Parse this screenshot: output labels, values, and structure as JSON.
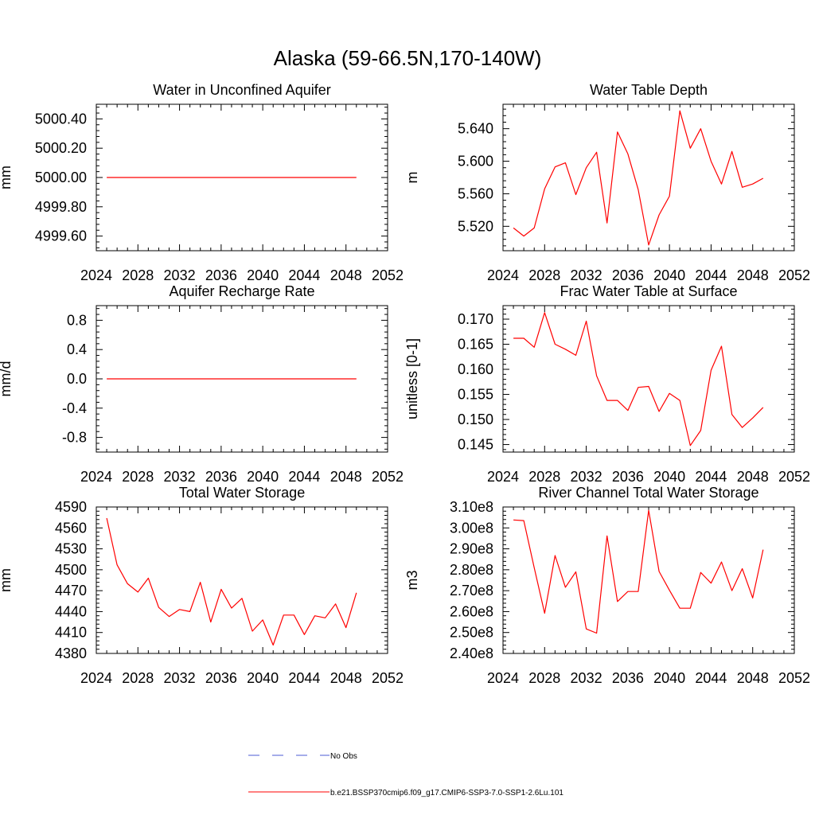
{
  "figure_title": "Alaska (59-66.5N,170-140W)",
  "legend": {
    "obs_label": "No Obs",
    "model_label": "b.e21.BSSP370cmip6.f09_g17.CMIP6-SSP3-7.0-SSP1-2.6Lu.101",
    "colors": {
      "obs": "#4b5bd6",
      "model": "#ff0000"
    }
  },
  "chart_data": [
    {
      "type": "line",
      "title": "Water in Unconfined Aquifer",
      "ylabel": "mm",
      "xlim": [
        2024,
        2052
      ],
      "xticks": [
        2024,
        2028,
        2032,
        2036,
        2040,
        2044,
        2048,
        2052
      ],
      "xtick_labels": [
        "2024",
        "2028",
        "2032",
        "2036",
        "2040",
        "2044",
        "2048",
        "2052"
      ],
      "ylim": [
        4999.5,
        5000.5
      ],
      "yticks": [
        4999.6,
        4999.8,
        5000.0,
        5000.2,
        5000.4
      ],
      "ytick_labels": [
        "4999.60",
        "4999.80",
        "5000.00",
        "5000.20",
        "5000.40"
      ],
      "series": [
        {
          "name": "b.e21.BSSP370cmip6.f09_g17.CMIP6-SSP3-7.0-SSP1-2.6Lu.101",
          "color": "#ff0000",
          "x": [
            2025,
            2026,
            2027,
            2028,
            2029,
            2030,
            2031,
            2032,
            2033,
            2034,
            2035,
            2036,
            2037,
            2038,
            2039,
            2040,
            2041,
            2042,
            2043,
            2044,
            2045,
            2046,
            2047,
            2048,
            2049
          ],
          "y": [
            5000,
            5000,
            5000,
            5000,
            5000,
            5000,
            5000,
            5000,
            5000,
            5000,
            5000,
            5000,
            5000,
            5000,
            5000,
            5000,
            5000,
            5000,
            5000,
            5000,
            5000,
            5000,
            5000,
            5000,
            5000
          ]
        }
      ]
    },
    {
      "type": "line",
      "title": "Water Table Depth",
      "ylabel": "m",
      "xlim": [
        2024,
        2052
      ],
      "xticks": [
        2024,
        2028,
        2032,
        2036,
        2040,
        2044,
        2048,
        2052
      ],
      "xtick_labels": [
        "2024",
        "2028",
        "2032",
        "2036",
        "2040",
        "2044",
        "2048",
        "2052"
      ],
      "ylim": [
        5.49,
        5.67
      ],
      "yticks": [
        5.52,
        5.56,
        5.6,
        5.64
      ],
      "ytick_labels": [
        "5.520",
        "5.560",
        "5.600",
        "5.640"
      ],
      "series": [
        {
          "name": "b.e21.BSSP370cmip6.f09_g17.CMIP6-SSP3-7.0-SSP1-2.6Lu.101",
          "color": "#ff0000",
          "x": [
            2025,
            2026,
            2027,
            2028,
            2029,
            2030,
            2031,
            2032,
            2033,
            2034,
            2035,
            2036,
            2037,
            2038,
            2039,
            2040,
            2041,
            2042,
            2043,
            2044,
            2045,
            2046,
            2047,
            2048,
            2049
          ],
          "y": [
            5.518,
            5.508,
            5.518,
            5.566,
            5.593,
            5.598,
            5.559,
            5.592,
            5.611,
            5.524,
            5.636,
            5.609,
            5.565,
            5.497,
            5.534,
            5.557,
            5.662,
            5.616,
            5.64,
            5.6,
            5.572,
            5.612,
            5.568,
            5.572,
            5.579
          ]
        }
      ]
    },
    {
      "type": "line",
      "title": "Aquifer Recharge Rate",
      "ylabel": "mm/d",
      "xlim": [
        2024,
        2052
      ],
      "xticks": [
        2024,
        2028,
        2032,
        2036,
        2040,
        2044,
        2048,
        2052
      ],
      "xtick_labels": [
        "2024",
        "2028",
        "2032",
        "2036",
        "2040",
        "2044",
        "2048",
        "2052"
      ],
      "ylim": [
        -1.0,
        1.0
      ],
      "yticks": [
        -0.8,
        -0.4,
        0.0,
        0.4,
        0.8
      ],
      "ytick_labels": [
        "-0.8",
        "-0.4",
        "0.0",
        "0.4",
        "0.8"
      ],
      "series": [
        {
          "name": "b.e21.BSSP370cmip6.f09_g17.CMIP6-SSP3-7.0-SSP1-2.6Lu.101",
          "color": "#ff0000",
          "x": [
            2025,
            2026,
            2027,
            2028,
            2029,
            2030,
            2031,
            2032,
            2033,
            2034,
            2035,
            2036,
            2037,
            2038,
            2039,
            2040,
            2041,
            2042,
            2043,
            2044,
            2045,
            2046,
            2047,
            2048,
            2049
          ],
          "y": [
            0,
            0,
            0,
            0,
            0,
            0,
            0,
            0,
            0,
            0,
            0,
            0,
            0,
            0,
            0,
            0,
            0,
            0,
            0,
            0,
            0,
            0,
            0,
            0,
            0
          ]
        }
      ]
    },
    {
      "type": "line",
      "title": "Frac Water Table at Surface",
      "ylabel": "unitless [0-1]",
      "xlim": [
        2024,
        2052
      ],
      "xticks": [
        2024,
        2028,
        2032,
        2036,
        2040,
        2044,
        2048,
        2052
      ],
      "xtick_labels": [
        "2024",
        "2028",
        "2032",
        "2036",
        "2040",
        "2044",
        "2048",
        "2052"
      ],
      "ylim": [
        0.1435,
        0.1727
      ],
      "yticks": [
        0.145,
        0.15,
        0.155,
        0.16,
        0.165,
        0.17
      ],
      "ytick_labels": [
        "0.145",
        "0.150",
        "0.155",
        "0.160",
        "0.165",
        "0.170"
      ],
      "series": [
        {
          "name": "b.e21.BSSP370cmip6.f09_g17.CMIP6-SSP3-7.0-SSP1-2.6Lu.101",
          "color": "#ff0000",
          "x": [
            2025,
            2026,
            2027,
            2028,
            2029,
            2030,
            2031,
            2032,
            2033,
            2034,
            2035,
            2036,
            2037,
            2038,
            2039,
            2040,
            2041,
            2042,
            2043,
            2044,
            2045,
            2046,
            2047,
            2048,
            2049
          ],
          "y": [
            0.1662,
            0.1662,
            0.1644,
            0.1713,
            0.165,
            0.164,
            0.1628,
            0.1696,
            0.1587,
            0.1538,
            0.1538,
            0.1518,
            0.1564,
            0.1566,
            0.1516,
            0.1552,
            0.1538,
            0.1448,
            0.1478,
            0.1598,
            0.1646,
            0.151,
            0.1484,
            0.1503,
            0.1524
          ]
        }
      ]
    },
    {
      "type": "line",
      "title": "Total Water Storage",
      "ylabel": "mm",
      "xlim": [
        2024,
        2052
      ],
      "xticks": [
        2024,
        2028,
        2032,
        2036,
        2040,
        2044,
        2048,
        2052
      ],
      "xtick_labels": [
        "2024",
        "2028",
        "2032",
        "2036",
        "2040",
        "2044",
        "2048",
        "2052"
      ],
      "ylim": [
        4380,
        4590
      ],
      "yticks": [
        4380,
        4410,
        4440,
        4470,
        4500,
        4530,
        4560,
        4590
      ],
      "ytick_labels": [
        "4380",
        "4410",
        "4440",
        "4470",
        "4500",
        "4530",
        "4560",
        "4590"
      ],
      "series": [
        {
          "name": "b.e21.BSSP370cmip6.f09_g17.CMIP6-SSP3-7.0-SSP1-2.6Lu.101",
          "color": "#ff0000",
          "x": [
            2025,
            2026,
            2027,
            2028,
            2029,
            2030,
            2031,
            2032,
            2033,
            2034,
            2035,
            2036,
            2037,
            2038,
            2039,
            2040,
            2041,
            2042,
            2043,
            2044,
            2045,
            2046,
            2047,
            2048,
            2049
          ],
          "y": [
            4574,
            4507,
            4480,
            4468,
            4488,
            4446,
            4433,
            4443,
            4440,
            4482,
            4425,
            4472,
            4445,
            4459,
            4412,
            4428,
            4392,
            4435,
            4435,
            4407,
            4434,
            4431,
            4451,
            4417,
            4467
          ]
        }
      ]
    },
    {
      "type": "line",
      "title": "River Channel Total Water Storage",
      "ylabel": "m3",
      "xlim": [
        2024,
        2052
      ],
      "xticks": [
        2024,
        2028,
        2032,
        2036,
        2040,
        2044,
        2048,
        2052
      ],
      "xtick_labels": [
        "2024",
        "2028",
        "2032",
        "2036",
        "2040",
        "2044",
        "2048",
        "2052"
      ],
      "ylim": [
        240000000,
        310000000
      ],
      "yticks": [
        240000000,
        250000000,
        260000000,
        270000000,
        280000000,
        290000000,
        300000000,
        310000000
      ],
      "ytick_labels": [
        "2.40e8",
        "2.50e8",
        "2.60e8",
        "2.70e8",
        "2.80e8",
        "2.90e8",
        "3.00e8",
        "3.10e8"
      ],
      "series": [
        {
          "name": "b.e21.BSSP370cmip6.f09_g17.CMIP6-SSP3-7.0-SSP1-2.6Lu.101",
          "color": "#ff0000",
          "x": [
            2025,
            2026,
            2027,
            2028,
            2029,
            2030,
            2031,
            2032,
            2033,
            2034,
            2035,
            2036,
            2037,
            2038,
            2039,
            2040,
            2041,
            2042,
            2043,
            2044,
            2045,
            2046,
            2047,
            2048,
            2049
          ],
          "y": [
            303800000,
            303500000,
            281000000,
            259200000,
            286800000,
            271600000,
            279000000,
            251700000,
            249700000,
            296200000,
            264800000,
            269600000,
            269600000,
            308400000,
            279200000,
            270200000,
            261600000,
            261600000,
            278700000,
            273600000,
            283700000,
            270000000,
            280500000,
            266500000,
            289600000
          ]
        }
      ]
    }
  ]
}
